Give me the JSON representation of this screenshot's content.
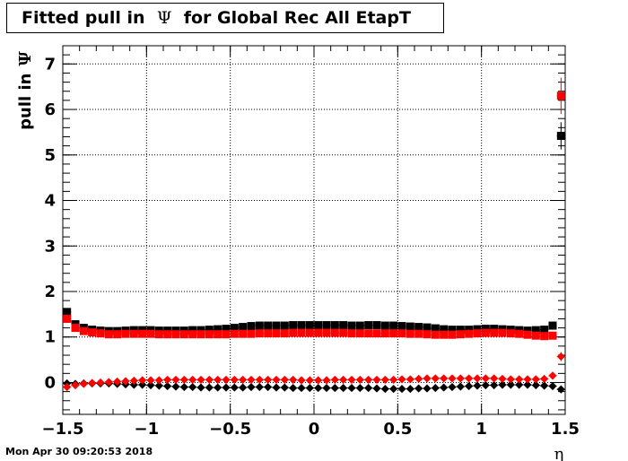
{
  "chart_data": {
    "type": "scatter",
    "title_prefix": "Fitted pull in",
    "title_symbol": "Ψ",
    "title_suffix": "for Global Rec All EtapT",
    "xlabel": "η",
    "ylabel_text": "pull in",
    "ylabel_symbol": "Ψ",
    "xlim": [
      -1.5,
      1.5
    ],
    "ylim": [
      -0.7,
      7.4
    ],
    "grid": true,
    "x_ticks": [
      "−1.5",
      "−1",
      "−0.5",
      "0",
      "0.5",
      "1",
      "1.5"
    ],
    "y_ticks": [
      "0",
      "1",
      "2",
      "3",
      "4",
      "5",
      "6",
      "7"
    ],
    "x": [
      -1.475,
      -1.425,
      -1.375,
      -1.325,
      -1.275,
      -1.225,
      -1.175,
      -1.125,
      -1.075,
      -1.025,
      -0.975,
      -0.925,
      -0.875,
      -0.825,
      -0.775,
      -0.725,
      -0.675,
      -0.625,
      -0.575,
      -0.525,
      -0.475,
      -0.425,
      -0.375,
      -0.325,
      -0.275,
      -0.225,
      -0.175,
      -0.125,
      -0.075,
      -0.025,
      0.025,
      0.075,
      0.125,
      0.175,
      0.225,
      0.275,
      0.325,
      0.375,
      0.425,
      0.475,
      0.525,
      0.575,
      0.625,
      0.675,
      0.725,
      0.775,
      0.825,
      0.875,
      0.925,
      0.975,
      1.025,
      1.075,
      1.125,
      1.175,
      1.225,
      1.275,
      1.325,
      1.375,
      1.425,
      1.475
    ],
    "series": [
      {
        "color": "#000000",
        "marker": "square",
        "values": [
          1.55,
          1.28,
          1.2,
          1.16,
          1.14,
          1.13,
          1.13,
          1.14,
          1.15,
          1.15,
          1.15,
          1.14,
          1.14,
          1.14,
          1.14,
          1.15,
          1.15,
          1.16,
          1.17,
          1.18,
          1.2,
          1.22,
          1.24,
          1.25,
          1.25,
          1.25,
          1.25,
          1.26,
          1.26,
          1.26,
          1.26,
          1.26,
          1.26,
          1.26,
          1.25,
          1.25,
          1.26,
          1.26,
          1.25,
          1.25,
          1.24,
          1.23,
          1.22,
          1.21,
          1.19,
          1.17,
          1.16,
          1.16,
          1.16,
          1.17,
          1.18,
          1.18,
          1.17,
          1.16,
          1.15,
          1.14,
          1.15,
          1.16,
          1.25,
          5.42
        ],
        "errors": [
          0.06,
          0.03,
          0.02,
          0.02,
          0.02,
          0.02,
          0.02,
          0.02,
          0.02,
          0.02,
          0.02,
          0.02,
          0.02,
          0.02,
          0.02,
          0.02,
          0.02,
          0.02,
          0.02,
          0.02,
          0.02,
          0.02,
          0.02,
          0.02,
          0.02,
          0.02,
          0.02,
          0.02,
          0.02,
          0.02,
          0.02,
          0.02,
          0.02,
          0.02,
          0.02,
          0.02,
          0.02,
          0.02,
          0.02,
          0.02,
          0.02,
          0.02,
          0.02,
          0.02,
          0.02,
          0.02,
          0.02,
          0.02,
          0.02,
          0.02,
          0.02,
          0.02,
          0.02,
          0.02,
          0.02,
          0.02,
          0.02,
          0.02,
          0.05,
          0.3
        ]
      },
      {
        "color": "#ff0000",
        "marker": "square",
        "values": [
          1.4,
          1.2,
          1.13,
          1.1,
          1.08,
          1.06,
          1.06,
          1.07,
          1.07,
          1.07,
          1.07,
          1.06,
          1.06,
          1.06,
          1.06,
          1.06,
          1.06,
          1.06,
          1.06,
          1.06,
          1.07,
          1.07,
          1.07,
          1.08,
          1.08,
          1.08,
          1.08,
          1.09,
          1.09,
          1.09,
          1.09,
          1.09,
          1.09,
          1.09,
          1.08,
          1.08,
          1.08,
          1.08,
          1.08,
          1.08,
          1.08,
          1.07,
          1.07,
          1.06,
          1.05,
          1.05,
          1.05,
          1.06,
          1.07,
          1.08,
          1.09,
          1.09,
          1.09,
          1.08,
          1.07,
          1.05,
          1.03,
          1.02,
          1.03,
          6.3
        ],
        "errors": [
          0.06,
          0.03,
          0.02,
          0.02,
          0.02,
          0.02,
          0.02,
          0.02,
          0.02,
          0.02,
          0.02,
          0.02,
          0.02,
          0.02,
          0.02,
          0.02,
          0.02,
          0.02,
          0.02,
          0.02,
          0.02,
          0.02,
          0.02,
          0.02,
          0.02,
          0.02,
          0.02,
          0.02,
          0.02,
          0.02,
          0.02,
          0.02,
          0.02,
          0.02,
          0.02,
          0.02,
          0.02,
          0.02,
          0.02,
          0.02,
          0.02,
          0.02,
          0.02,
          0.02,
          0.02,
          0.02,
          0.02,
          0.02,
          0.02,
          0.02,
          0.02,
          0.02,
          0.02,
          0.02,
          0.02,
          0.02,
          0.02,
          0.02,
          0.05,
          0.4
        ]
      },
      {
        "color": "#000000",
        "marker": "diamond",
        "values": [
          -0.02,
          -0.03,
          -0.02,
          -0.02,
          -0.02,
          -0.02,
          -0.03,
          -0.04,
          -0.05,
          -0.05,
          -0.06,
          -0.07,
          -0.08,
          -0.09,
          -0.1,
          -0.1,
          -0.11,
          -0.11,
          -0.11,
          -0.11,
          -0.11,
          -0.11,
          -0.1,
          -0.1,
          -0.1,
          -0.11,
          -0.11,
          -0.12,
          -0.12,
          -0.12,
          -0.12,
          -0.12,
          -0.12,
          -0.12,
          -0.12,
          -0.12,
          -0.12,
          -0.13,
          -0.14,
          -0.14,
          -0.14,
          -0.14,
          -0.13,
          -0.13,
          -0.12,
          -0.11,
          -0.1,
          -0.09,
          -0.08,
          -0.07,
          -0.06,
          -0.06,
          -0.05,
          -0.05,
          -0.05,
          -0.05,
          -0.06,
          -0.07,
          -0.08,
          -0.15
        ],
        "errors": [
          0.04,
          0.02,
          0.02,
          0.02,
          0.02,
          0.02,
          0.02,
          0.02,
          0.02,
          0.02,
          0.02,
          0.02,
          0.02,
          0.02,
          0.02,
          0.02,
          0.02,
          0.02,
          0.02,
          0.02,
          0.02,
          0.02,
          0.02,
          0.02,
          0.02,
          0.02,
          0.02,
          0.02,
          0.02,
          0.02,
          0.02,
          0.02,
          0.02,
          0.02,
          0.02,
          0.02,
          0.02,
          0.02,
          0.02,
          0.02,
          0.02,
          0.02,
          0.02,
          0.02,
          0.02,
          0.02,
          0.02,
          0.02,
          0.02,
          0.02,
          0.02,
          0.02,
          0.02,
          0.02,
          0.02,
          0.02,
          0.02,
          0.02,
          0.03,
          0.04
        ]
      },
      {
        "color": "#ff0000",
        "marker": "diamond",
        "values": [
          -0.1,
          -0.06,
          -0.03,
          -0.01,
          0.0,
          0.01,
          0.02,
          0.03,
          0.04,
          0.05,
          0.05,
          0.05,
          0.06,
          0.06,
          0.06,
          0.06,
          0.06,
          0.06,
          0.06,
          0.06,
          0.06,
          0.06,
          0.06,
          0.06,
          0.06,
          0.06,
          0.06,
          0.06,
          0.05,
          0.05,
          0.05,
          0.05,
          0.06,
          0.06,
          0.06,
          0.06,
          0.06,
          0.06,
          0.06,
          0.06,
          0.07,
          0.07,
          0.08,
          0.09,
          0.09,
          0.09,
          0.09,
          0.09,
          0.09,
          0.09,
          0.09,
          0.09,
          0.08,
          0.07,
          0.07,
          0.07,
          0.07,
          0.08,
          0.15,
          0.57
        ],
        "errors": [
          0.04,
          0.02,
          0.02,
          0.02,
          0.02,
          0.02,
          0.02,
          0.02,
          0.02,
          0.02,
          0.02,
          0.02,
          0.02,
          0.02,
          0.02,
          0.02,
          0.02,
          0.02,
          0.02,
          0.02,
          0.02,
          0.02,
          0.02,
          0.02,
          0.02,
          0.02,
          0.02,
          0.02,
          0.02,
          0.02,
          0.02,
          0.02,
          0.02,
          0.02,
          0.02,
          0.02,
          0.02,
          0.02,
          0.02,
          0.02,
          0.02,
          0.02,
          0.02,
          0.02,
          0.02,
          0.02,
          0.02,
          0.02,
          0.02,
          0.02,
          0.02,
          0.02,
          0.02,
          0.02,
          0.02,
          0.02,
          0.02,
          0.02,
          0.04,
          0.1
        ]
      }
    ]
  },
  "footer": {
    "timestamp": "Mon Apr 30 09:20:53 2018"
  }
}
